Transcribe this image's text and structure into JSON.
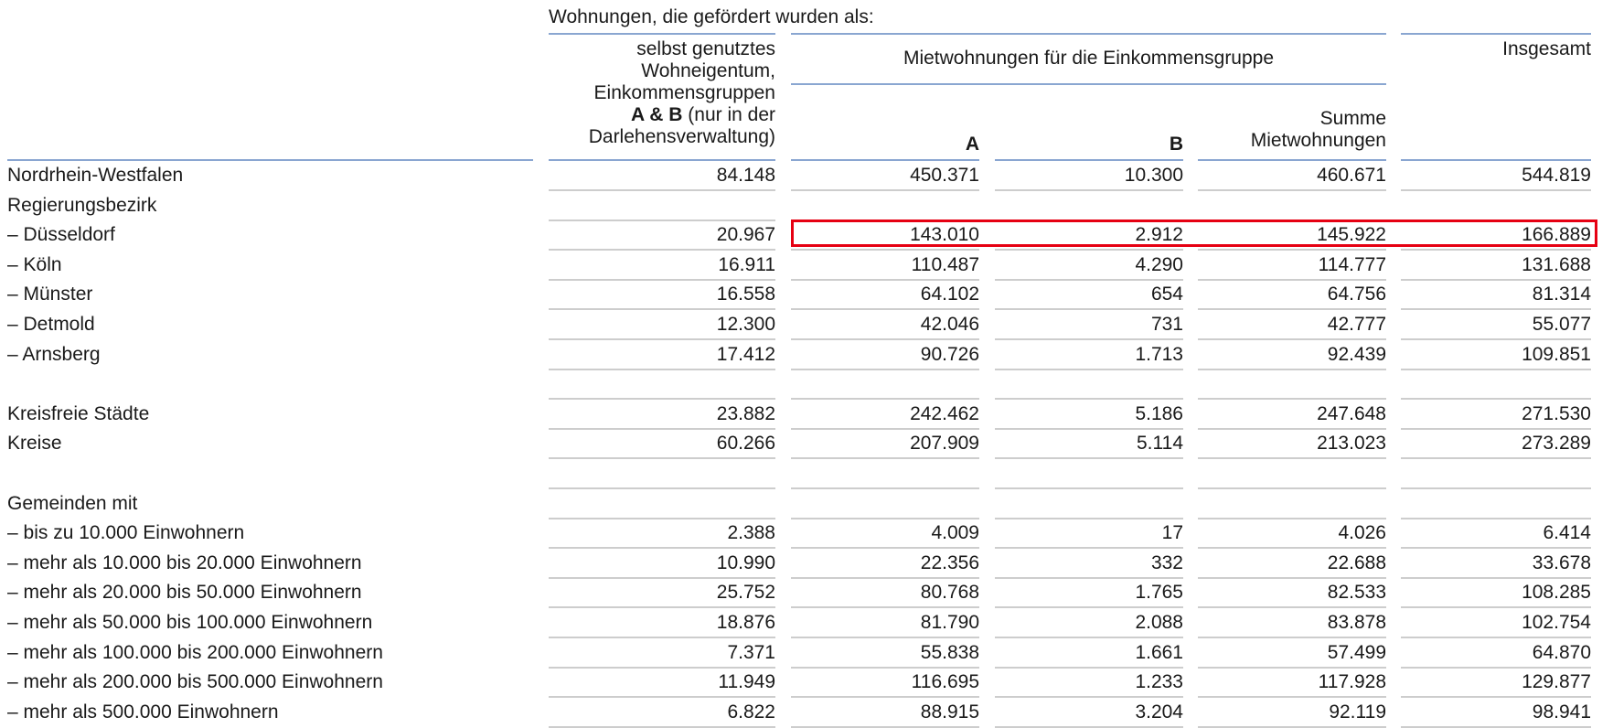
{
  "header": {
    "caption": "Wohnungen, die gefördert wurden als:",
    "col1": [
      "selbst genutztes",
      "Wohneigentum,",
      "Einkommensgruppen",
      "A & B",
      "(nur in der",
      "Darlehensverwaltung)"
    ],
    "group_label": "Mietwohnungen für die Einkommensgruppe",
    "col_a": "A",
    "col_b": "B",
    "col_summe": [
      "Summe",
      "Mietwohnungen"
    ],
    "col_total": "Insgesamt"
  },
  "rows": [
    {
      "label": "Nordrhein-Westfalen",
      "v": [
        "84.148",
        "450.371",
        "10.300",
        "460.671",
        "544.819"
      ]
    },
    {
      "label": "Regierungsbezirk",
      "v": [
        "",
        "",
        "",
        "",
        ""
      ]
    },
    {
      "label": "– Düsseldorf",
      "v": [
        "20.967",
        "143.010",
        "2.912",
        "145.922",
        "166.889"
      ]
    },
    {
      "label": "– Köln",
      "v": [
        "16.911",
        "110.487",
        "4.290",
        "114.777",
        "131.688"
      ]
    },
    {
      "label": "– Münster",
      "v": [
        "16.558",
        "64.102",
        "654",
        "64.756",
        "81.314"
      ]
    },
    {
      "label": "– Detmold",
      "v": [
        "12.300",
        "42.046",
        "731",
        "42.777",
        "55.077"
      ]
    },
    {
      "label": "– Arnsberg",
      "v": [
        "17.412",
        "90.726",
        "1.713",
        "92.439",
        "109.851"
      ]
    },
    {
      "label": "",
      "v": [
        "",
        "",
        "",
        "",
        ""
      ]
    },
    {
      "label": "Kreisfreie Städte",
      "v": [
        "23.882",
        "242.462",
        "5.186",
        "247.648",
        "271.530"
      ]
    },
    {
      "label": "Kreise",
      "v": [
        "60.266",
        "207.909",
        "5.114",
        "213.023",
        "273.289"
      ]
    },
    {
      "label": "",
      "v": [
        "",
        "",
        "",
        "",
        ""
      ]
    },
    {
      "label": "Gemeinden mit",
      "v": [
        "",
        "",
        "",
        "",
        ""
      ]
    },
    {
      "label": "– bis zu 10.000 Einwohnern",
      "v": [
        "2.388",
        "4.009",
        "17",
        "4.026",
        "6.414"
      ]
    },
    {
      "label": "– mehr als 10.000 bis 20.000 Einwohnern",
      "v": [
        "10.990",
        "22.356",
        "332",
        "22.688",
        "33.678"
      ]
    },
    {
      "label": "– mehr als 20.000 bis 50.000 Einwohnern",
      "v": [
        "25.752",
        "80.768",
        "1.765",
        "82.533",
        "108.285"
      ]
    },
    {
      "label": "– mehr als 50.000 bis 100.000 Einwohnern",
      "v": [
        "18.876",
        "81.790",
        "2.088",
        "83.878",
        "102.754"
      ]
    },
    {
      "label": "– mehr als 100.000 bis 200.000 Einwohnern",
      "v": [
        "7.371",
        "55.838",
        "1.661",
        "57.499",
        "64.870"
      ]
    },
    {
      "label": "– mehr als 200.000 bis 500.000 Einwohnern",
      "v": [
        "11.949",
        "116.695",
        "1.233",
        "117.928",
        "129.877"
      ]
    },
    {
      "label": "– mehr als 500.000 Einwohnern",
      "v": [
        "6.822",
        "88.915",
        "3.204",
        "92.119",
        "98.941"
      ]
    }
  ],
  "highlight": {
    "row": "– Düsseldorf",
    "color": "#e60012"
  },
  "colors": {
    "header_rule": "#8aa6d1",
    "row_separator": "#cdcdcd",
    "highlight": "#e60012"
  }
}
